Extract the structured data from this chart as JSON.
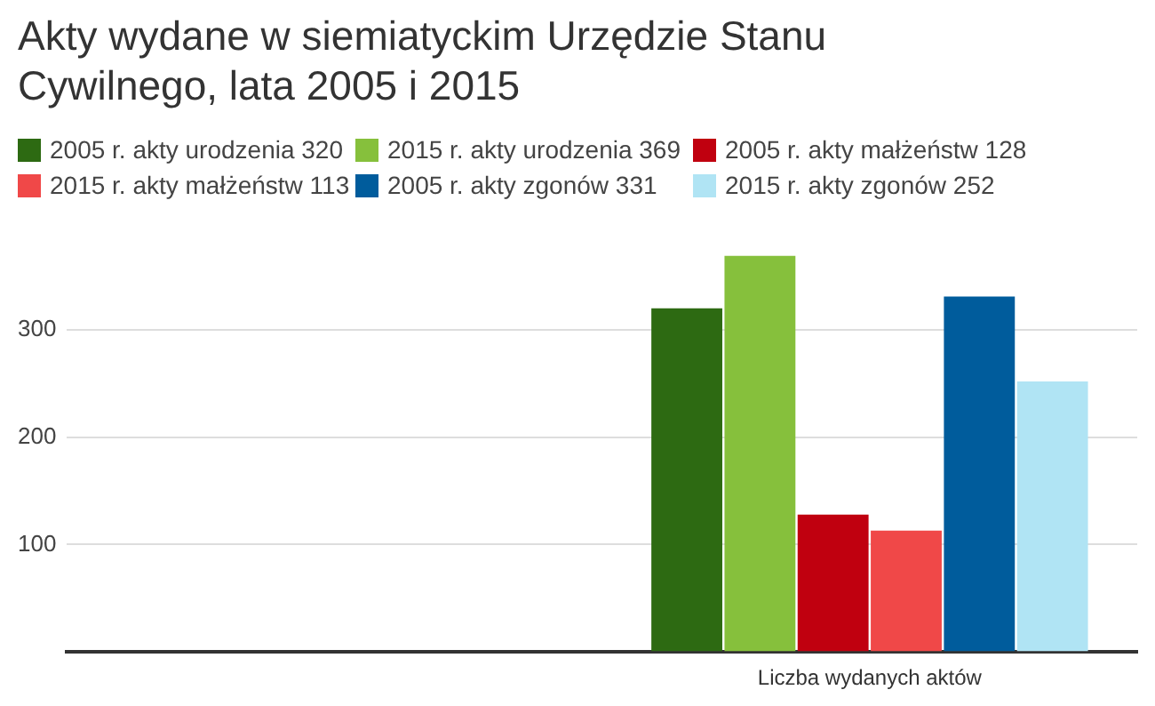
{
  "chart_data": {
    "type": "bar",
    "title": "Akty wydane w siemiatyckim Urzędzie Stanu Cywilnego, lata 2005 i 2015",
    "categories": [
      null,
      "Liczba wydanych aktów"
    ],
    "series": [
      {
        "name": "2005 r. akty urodzenia 320",
        "color": "#2d6a12",
        "values": [
          null,
          320
        ]
      },
      {
        "name": "2015 r. akty urodzenia 369",
        "color": "#86c03c",
        "values": [
          null,
          369
        ]
      },
      {
        "name": "2005 r. akty małżeństw 128",
        "color": "#c0000f",
        "values": [
          null,
          128
        ]
      },
      {
        "name": "2015 r. akty małżeństw 113",
        "color": "#f04848",
        "values": [
          null,
          113
        ]
      },
      {
        "name": "2005 r. akty zgonów 331",
        "color": "#005c9c",
        "values": [
          null,
          331
        ]
      },
      {
        "name": "2015 r. akty zgonów 252",
        "color": "#b0e4f4",
        "values": [
          null,
          252
        ]
      }
    ],
    "ylim": [
      0,
      369
    ],
    "yticks": [
      {
        "value": 0,
        "label": null
      },
      100,
      200,
      300
    ],
    "grid": "y",
    "legend": "top"
  }
}
